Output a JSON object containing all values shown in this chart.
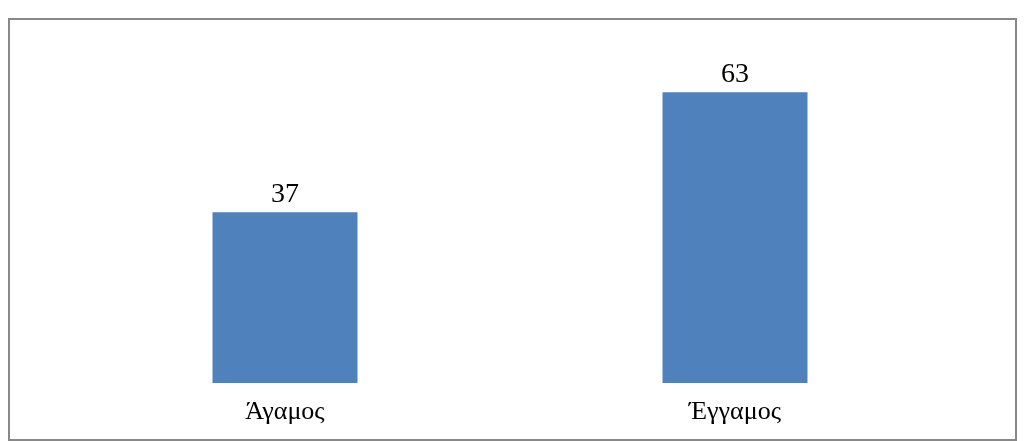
{
  "chart_data": {
    "type": "bar",
    "categories": [
      "Άγαμος",
      "Έγγαμος"
    ],
    "values": [
      37,
      63
    ],
    "color": "#4f81bd",
    "data_labels": true
  }
}
